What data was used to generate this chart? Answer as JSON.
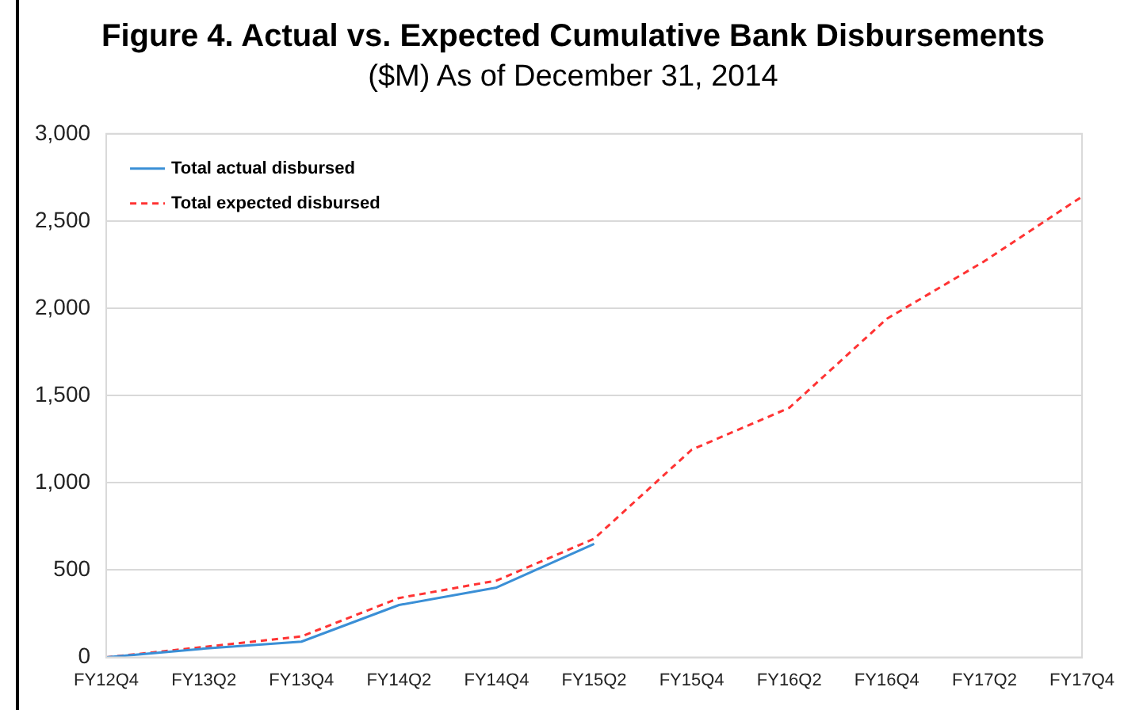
{
  "chart_data": {
    "type": "line",
    "title": "Figure 4. Actual vs. Expected Cumulative Bank Disbursements",
    "subtitle": "($M) As of December 31, 2014",
    "categories": [
      "FY12Q4",
      "FY13Q2",
      "FY13Q4",
      "FY14Q2",
      "FY14Q4",
      "FY15Q2",
      "FY15Q4",
      "FY16Q2",
      "FY16Q4",
      "FY17Q2",
      "FY17Q4"
    ],
    "series": [
      {
        "name": "Total actual disbursed",
        "color": "#3a8fd6",
        "line_style": "solid",
        "values": [
          0,
          50,
          90,
          300,
          400,
          650,
          null,
          null,
          null,
          null,
          null
        ]
      },
      {
        "name": "Total expected disbursed",
        "color": "#ff3333",
        "line_style": "dashed",
        "values": [
          0,
          60,
          120,
          340,
          440,
          680,
          1190,
          1430,
          1940,
          2270,
          2640
        ]
      }
    ],
    "ylim": [
      0,
      3000
    ],
    "yticks": [
      {
        "value": 0,
        "label": "0"
      },
      {
        "value": 500,
        "label": "500"
      },
      {
        "value": 1000,
        "label": "1,000"
      },
      {
        "value": 1500,
        "label": "1,500"
      },
      {
        "value": 2000,
        "label": "2,000"
      },
      {
        "value": 2500,
        "label": "2,500"
      },
      {
        "value": 3000,
        "label": "3,000"
      }
    ],
    "grid": "y",
    "legend": "top left",
    "marker": "none"
  }
}
